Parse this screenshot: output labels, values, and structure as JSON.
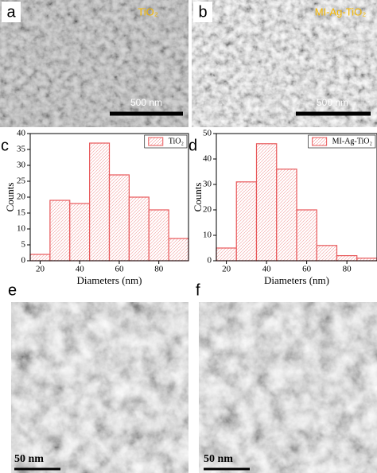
{
  "images": [
    {
      "label": "a",
      "caption": "TiO₂",
      "scale_bar": "500 nm"
    },
    {
      "label": "b",
      "caption": "MI-Ag-TiO₂",
      "scale_bar": "500 nm"
    },
    {
      "label": "e",
      "scale_bar": "50 nm"
    },
    {
      "label": "f",
      "scale_bar": "50 nm"
    }
  ],
  "chart_data": [
    {
      "type": "histogram",
      "panel_label": "c",
      "xlabel": "Diameters (nm)",
      "ylabel": "Counts",
      "series": [
        {
          "name": "TiO₂",
          "color": "#e8585a",
          "values": [
            2,
            19,
            18,
            37,
            27,
            20,
            16,
            7
          ]
        }
      ],
      "bins": [
        15,
        25,
        35,
        45,
        55,
        65,
        75,
        85,
        95
      ],
      "xlim": [
        15,
        95
      ],
      "xticks": [
        20,
        40,
        60,
        80
      ],
      "ylim": [
        0,
        40
      ],
      "yticks": [
        0,
        5,
        10,
        15,
        20,
        25,
        30,
        35,
        40
      ],
      "legend": "upper right"
    },
    {
      "type": "histogram",
      "panel_label": "d",
      "xlabel": "Diameters (nm)",
      "ylabel": "Counts",
      "series": [
        {
          "name": "MI-Ag-TiO₂",
          "color": "#e8585a",
          "values": [
            5,
            31,
            46,
            36,
            20,
            6,
            2,
            1
          ]
        }
      ],
      "bins": [
        15,
        25,
        35,
        45,
        55,
        65,
        75,
        85,
        95
      ],
      "xlim": [
        15,
        95
      ],
      "xticks": [
        20,
        40,
        60,
        80
      ],
      "ylim": [
        0,
        50
      ],
      "yticks": [
        0,
        10,
        20,
        30,
        40,
        50
      ],
      "legend": "upper right"
    }
  ]
}
